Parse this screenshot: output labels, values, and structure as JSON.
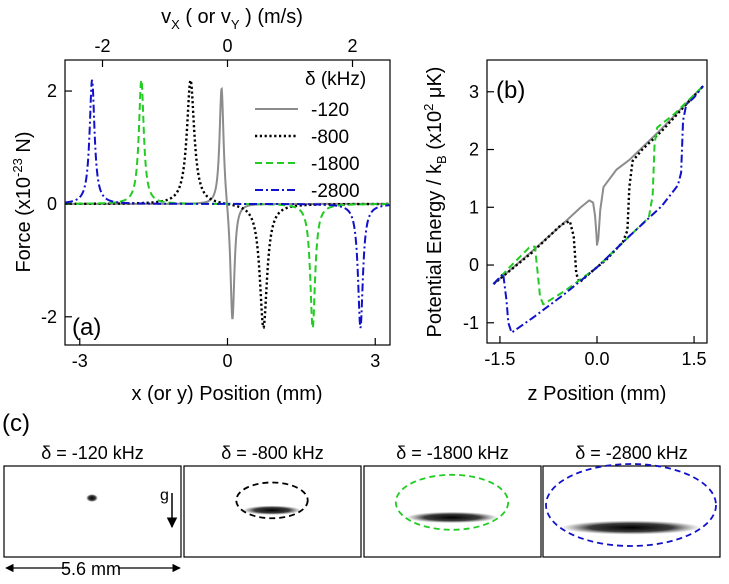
{
  "chart_data": [
    {
      "panel": "(a)",
      "type": "line",
      "xlabel": "x (or y) Position (mm)",
      "ylabel_pre": "Force (x10",
      "ylabel_exp": "-23",
      "ylabel_post": " N)",
      "top_xlabel_parts": [
        "v",
        "X",
        " ( or v",
        "Y",
        " ) (m/s)"
      ],
      "xlim": [
        -3.3,
        3.3
      ],
      "ylim": [
        -2.5,
        2.55
      ],
      "top_xlim": [
        -2.6,
        2.6
      ],
      "x_ticks": [
        "-3",
        "0",
        "3"
      ],
      "y_ticks": [
        "-2",
        "0",
        "2"
      ],
      "top_x_ticks": [
        "-2",
        "0",
        "2"
      ],
      "legend_title": "δ (kHz)",
      "series": [
        {
          "name": "-120",
          "color": "#8c8c8c",
          "style": "solid",
          "peak_x": -0.12,
          "trough_x": 0.1,
          "amplitude": 2.15,
          "width": 0.05
        },
        {
          "name": "-800",
          "color": "#000000",
          "style": "dotted",
          "peak_x": -0.75,
          "trough_x": 0.73,
          "amplitude": 2.2,
          "width": 0.09
        },
        {
          "name": "-1800",
          "color": "#22cc22",
          "style": "dashed",
          "peak_x": -1.75,
          "trough_x": 1.73,
          "amplitude": 2.2,
          "width": 0.06
        },
        {
          "name": "-2800",
          "color": "#1111cc",
          "style": "dashdot",
          "peak_x": -2.75,
          "trough_x": 2.7,
          "amplitude": 2.2,
          "width": 0.06
        }
      ]
    },
    {
      "panel": "(b)",
      "type": "line",
      "xlabel": "z Position (mm)",
      "ylabel_pre": "Potential Energy / k",
      "ylabel_sub": "B",
      "ylabel_mid": " (x10",
      "ylabel_exp": "2",
      "ylabel_post": " μK)",
      "xlim": [
        -1.7,
        1.7
      ],
      "ylim": [
        -1.35,
        3.55
      ],
      "x_ticks": [
        "-1.5",
        "0.0",
        "1.5"
      ],
      "y_ticks": [
        "-1",
        "0",
        "1",
        "2",
        "3"
      ],
      "baseline": {
        "slope": 1.15,
        "intercept": 1.2
      },
      "series": [
        {
          "name": "-120",
          "color": "#8c8c8c",
          "style": "solid",
          "points": [
            [
              -1.6,
              -0.33
            ],
            [
              -1.0,
              0.24
            ],
            [
              -0.5,
              0.74
            ],
            [
              -0.25,
              1.0
            ],
            [
              -0.12,
              1.12
            ],
            [
              -0.06,
              1.08
            ],
            [
              -0.03,
              0.85
            ],
            [
              -0.01,
              0.55
            ],
            [
              0.0,
              0.35
            ],
            [
              0.02,
              0.45
            ],
            [
              0.05,
              0.95
            ],
            [
              0.1,
              1.35
            ],
            [
              0.3,
              1.65
            ],
            [
              0.5,
              1.82
            ],
            [
              1.0,
              2.36
            ],
            [
              1.64,
              3.1
            ]
          ]
        },
        {
          "name": "-800",
          "color": "#000000",
          "style": "dotted",
          "points": [
            [
              -1.6,
              -0.33
            ],
            [
              -1.0,
              0.22
            ],
            [
              -0.55,
              0.7
            ],
            [
              -0.42,
              0.76
            ],
            [
              -0.36,
              0.5
            ],
            [
              -0.32,
              -0.15
            ],
            [
              -0.27,
              -0.3
            ],
            [
              -0.1,
              -0.13
            ],
            [
              0.15,
              0.1
            ],
            [
              0.4,
              0.4
            ],
            [
              0.47,
              0.6
            ],
            [
              0.5,
              1.35
            ],
            [
              0.55,
              1.8
            ],
            [
              0.7,
              2.0
            ],
            [
              1.0,
              2.32
            ],
            [
              1.64,
              3.1
            ]
          ]
        },
        {
          "name": "-1800",
          "color": "#22cc22",
          "style": "dashed",
          "points": [
            [
              -1.6,
              -0.33
            ],
            [
              -1.3,
              0.02
            ],
            [
              -1.05,
              0.3
            ],
            [
              -0.96,
              0.32
            ],
            [
              -0.92,
              -0.1
            ],
            [
              -0.88,
              -0.55
            ],
            [
              -0.83,
              -0.68
            ],
            [
              -0.5,
              -0.45
            ],
            [
              0.0,
              -0.04
            ],
            [
              0.5,
              0.5
            ],
            [
              0.8,
              0.82
            ],
            [
              0.86,
              1.2
            ],
            [
              0.89,
              2.1
            ],
            [
              0.93,
              2.38
            ],
            [
              1.2,
              2.62
            ],
            [
              1.64,
              3.1
            ]
          ]
        },
        {
          "name": "-2800",
          "color": "#1111cc",
          "style": "dashdot",
          "points": [
            [
              -1.6,
              -0.33
            ],
            [
              -1.45,
              -0.15
            ],
            [
              -1.4,
              -0.6
            ],
            [
              -1.37,
              -1.0
            ],
            [
              -1.32,
              -1.17
            ],
            [
              -1.0,
              -0.92
            ],
            [
              -0.5,
              -0.5
            ],
            [
              0.0,
              -0.04
            ],
            [
              0.5,
              0.5
            ],
            [
              1.0,
              1.02
            ],
            [
              1.25,
              1.38
            ],
            [
              1.3,
              1.6
            ],
            [
              1.33,
              2.5
            ],
            [
              1.38,
              2.78
            ],
            [
              1.5,
              2.9
            ],
            [
              1.64,
              3.1
            ]
          ]
        }
      ]
    }
  ],
  "panel_c": {
    "label": "(c)",
    "scale_label": "5.6 mm",
    "gravity_label": "g",
    "images": [
      {
        "title": "δ = -120 kHz",
        "ellipse_color": "",
        "size": 0.0
      },
      {
        "title": "δ = -800 kHz",
        "ellipse_color": "#000000",
        "size": 0.23
      },
      {
        "title": "δ = -1800 kHz",
        "ellipse_color": "#22cc22",
        "size": 0.55
      },
      {
        "title": "δ = -2800 kHz",
        "ellipse_color": "#1111cc",
        "size": 1.0
      }
    ]
  }
}
